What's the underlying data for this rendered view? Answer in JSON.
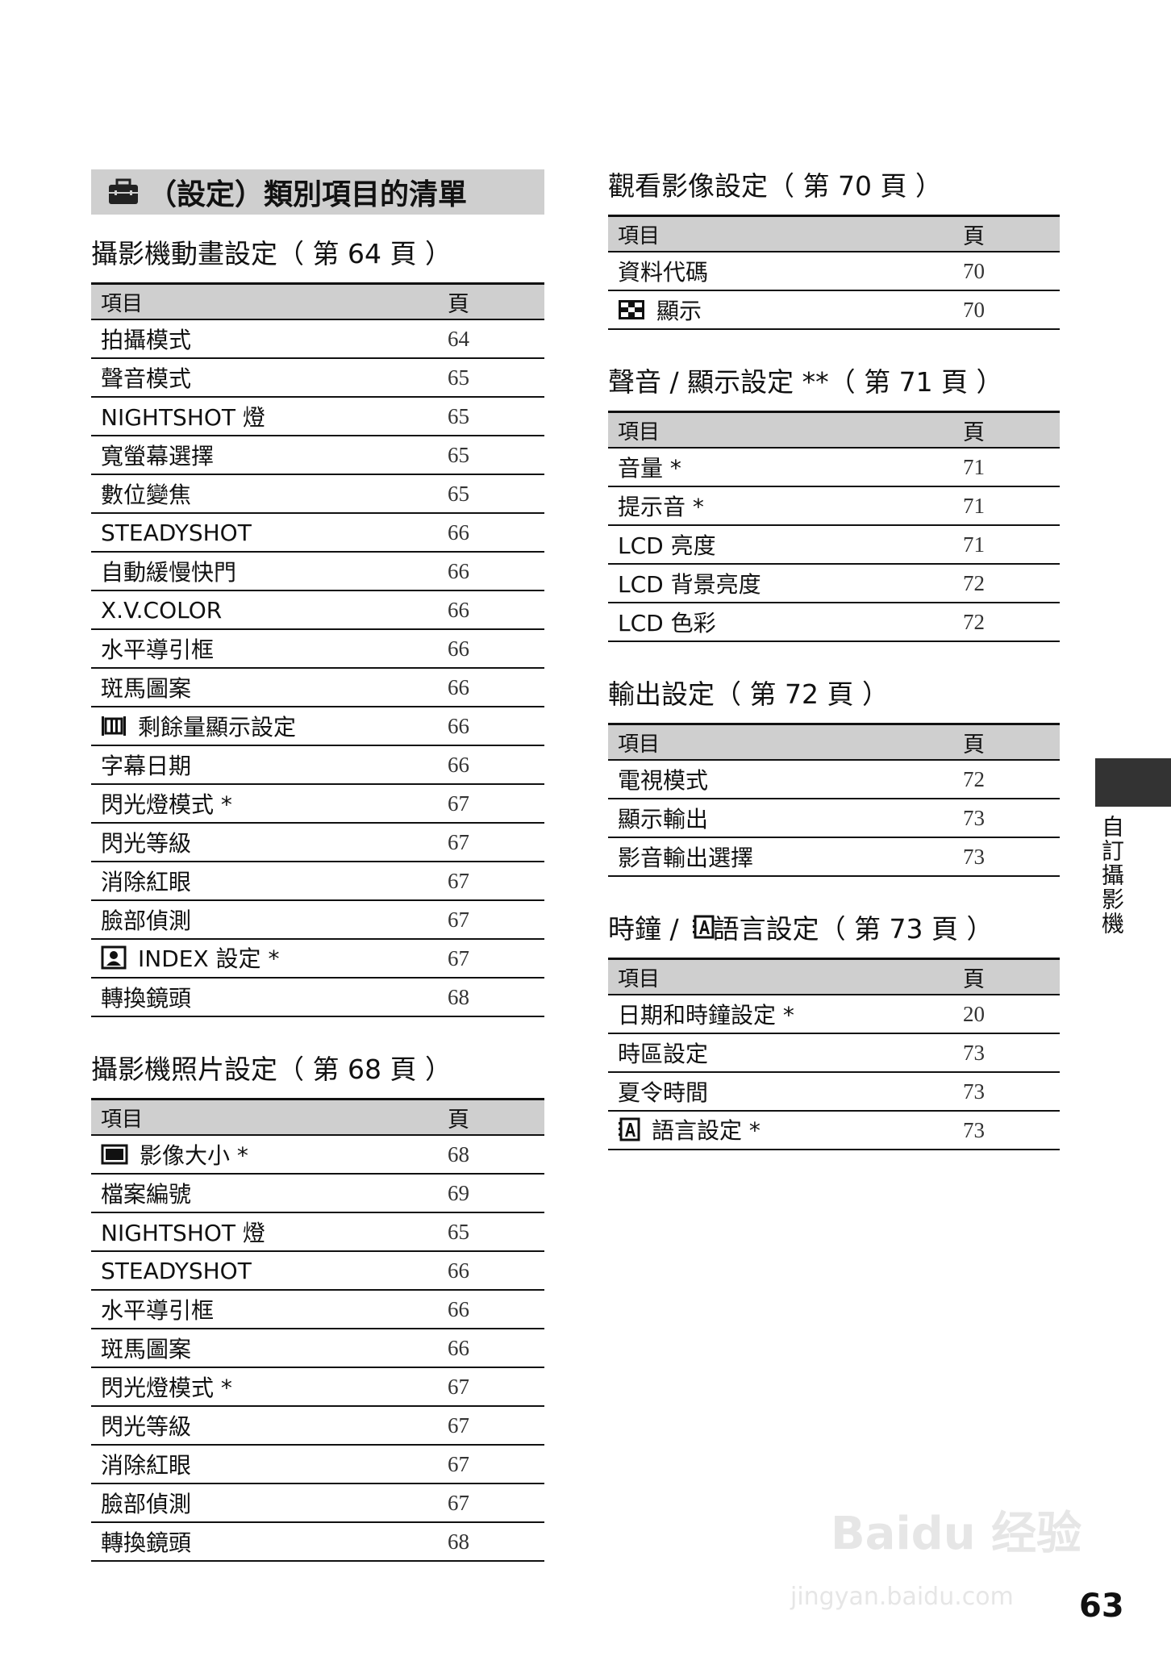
{
  "title": {
    "icon": "toolbox-icon",
    "text": "（設定）類別項目的清單"
  },
  "column_headers": {
    "item": "項目",
    "page": "頁"
  },
  "sections_left": [
    {
      "heading": "攝影機動畫設定（ 第 64 頁 ）",
      "rows": [
        {
          "item": "拍攝模式",
          "page": "64"
        },
        {
          "item": "聲音模式",
          "page": "65"
        },
        {
          "item": "NIGHTSHOT 燈",
          "page": "65"
        },
        {
          "item": "寬螢幕選擇",
          "page": "65"
        },
        {
          "item": "數位變焦",
          "page": "65"
        },
        {
          "item": "STEADYSHOT",
          "page": "66"
        },
        {
          "item": "自動緩慢快門",
          "page": "66"
        },
        {
          "item": "X.V.COLOR",
          "page": "66"
        },
        {
          "item": "水平導引框",
          "page": "66"
        },
        {
          "item": "斑馬圖案",
          "page": "66"
        },
        {
          "item": "剩餘量顯示設定",
          "page": "66",
          "icon": "film-battery-icon"
        },
        {
          "item": "字幕日期",
          "page": "66"
        },
        {
          "item": "閃光燈模式 *",
          "page": "67"
        },
        {
          "item": "閃光等級",
          "page": "67"
        },
        {
          "item": "消除紅眼",
          "page": "67"
        },
        {
          "item": "臉部偵測",
          "page": "67"
        },
        {
          "item": "INDEX 設定 *",
          "page": "67",
          "icon": "face-index-icon"
        },
        {
          "item": "轉換鏡頭",
          "page": "68"
        }
      ]
    },
    {
      "heading": "攝影機照片設定（ 第 68 頁 ）",
      "rows": [
        {
          "item": "影像大小 *",
          "page": "68",
          "icon": "image-size-icon"
        },
        {
          "item": "檔案編號",
          "page": "69"
        },
        {
          "item": "NIGHTSHOT 燈",
          "page": "65"
        },
        {
          "item": "STEADYSHOT",
          "page": "66"
        },
        {
          "item": "水平導引框",
          "page": "66"
        },
        {
          "item": "斑馬圖案",
          "page": "66"
        },
        {
          "item": "閃光燈模式 *",
          "page": "67"
        },
        {
          "item": "閃光等級",
          "page": "67"
        },
        {
          "item": "消除紅眼",
          "page": "67"
        },
        {
          "item": "臉部偵測",
          "page": "67"
        },
        {
          "item": "轉換鏡頭",
          "page": "68"
        }
      ]
    }
  ],
  "sections_right": [
    {
      "heading": "觀看影像設定（ 第 70 頁 ）",
      "rows": [
        {
          "item": "資料代碼",
          "page": "70"
        },
        {
          "item": "顯示",
          "page": "70",
          "icon": "checkerboard-icon"
        }
      ]
    },
    {
      "heading": "聲音 / 顯示設定 **（ 第 71 頁 ）",
      "rows": [
        {
          "item": "音量 *",
          "page": "71"
        },
        {
          "item": "提示音 *",
          "page": "71"
        },
        {
          "item": "LCD 亮度",
          "page": "71"
        },
        {
          "item": "LCD 背景亮度",
          "page": "72"
        },
        {
          "item": "LCD 色彩",
          "page": "72"
        }
      ]
    },
    {
      "heading": "輸出設定（ 第 72 頁 ）",
      "rows": [
        {
          "item": "電視模式",
          "page": "72"
        },
        {
          "item": "顯示輸出",
          "page": "73"
        },
        {
          "item": "影音輸出選擇",
          "page": "73"
        }
      ]
    },
    {
      "heading": "時鐘 /    語言設定（ 第 73 頁 ）",
      "heading_icon": "language-icon",
      "rows": [
        {
          "item": "日期和時鐘設定 *",
          "page": "20"
        },
        {
          "item": "時區設定",
          "page": "73"
        },
        {
          "item": "夏令時間",
          "page": "73"
        },
        {
          "item": "語言設定 *",
          "page": "73",
          "icon": "language-icon"
        }
      ]
    }
  ],
  "side_tab_label": "自訂攝影機",
  "page_number": "63",
  "watermark": {
    "logo": "Baidu 经验",
    "url": "jingyan.baidu.com"
  }
}
